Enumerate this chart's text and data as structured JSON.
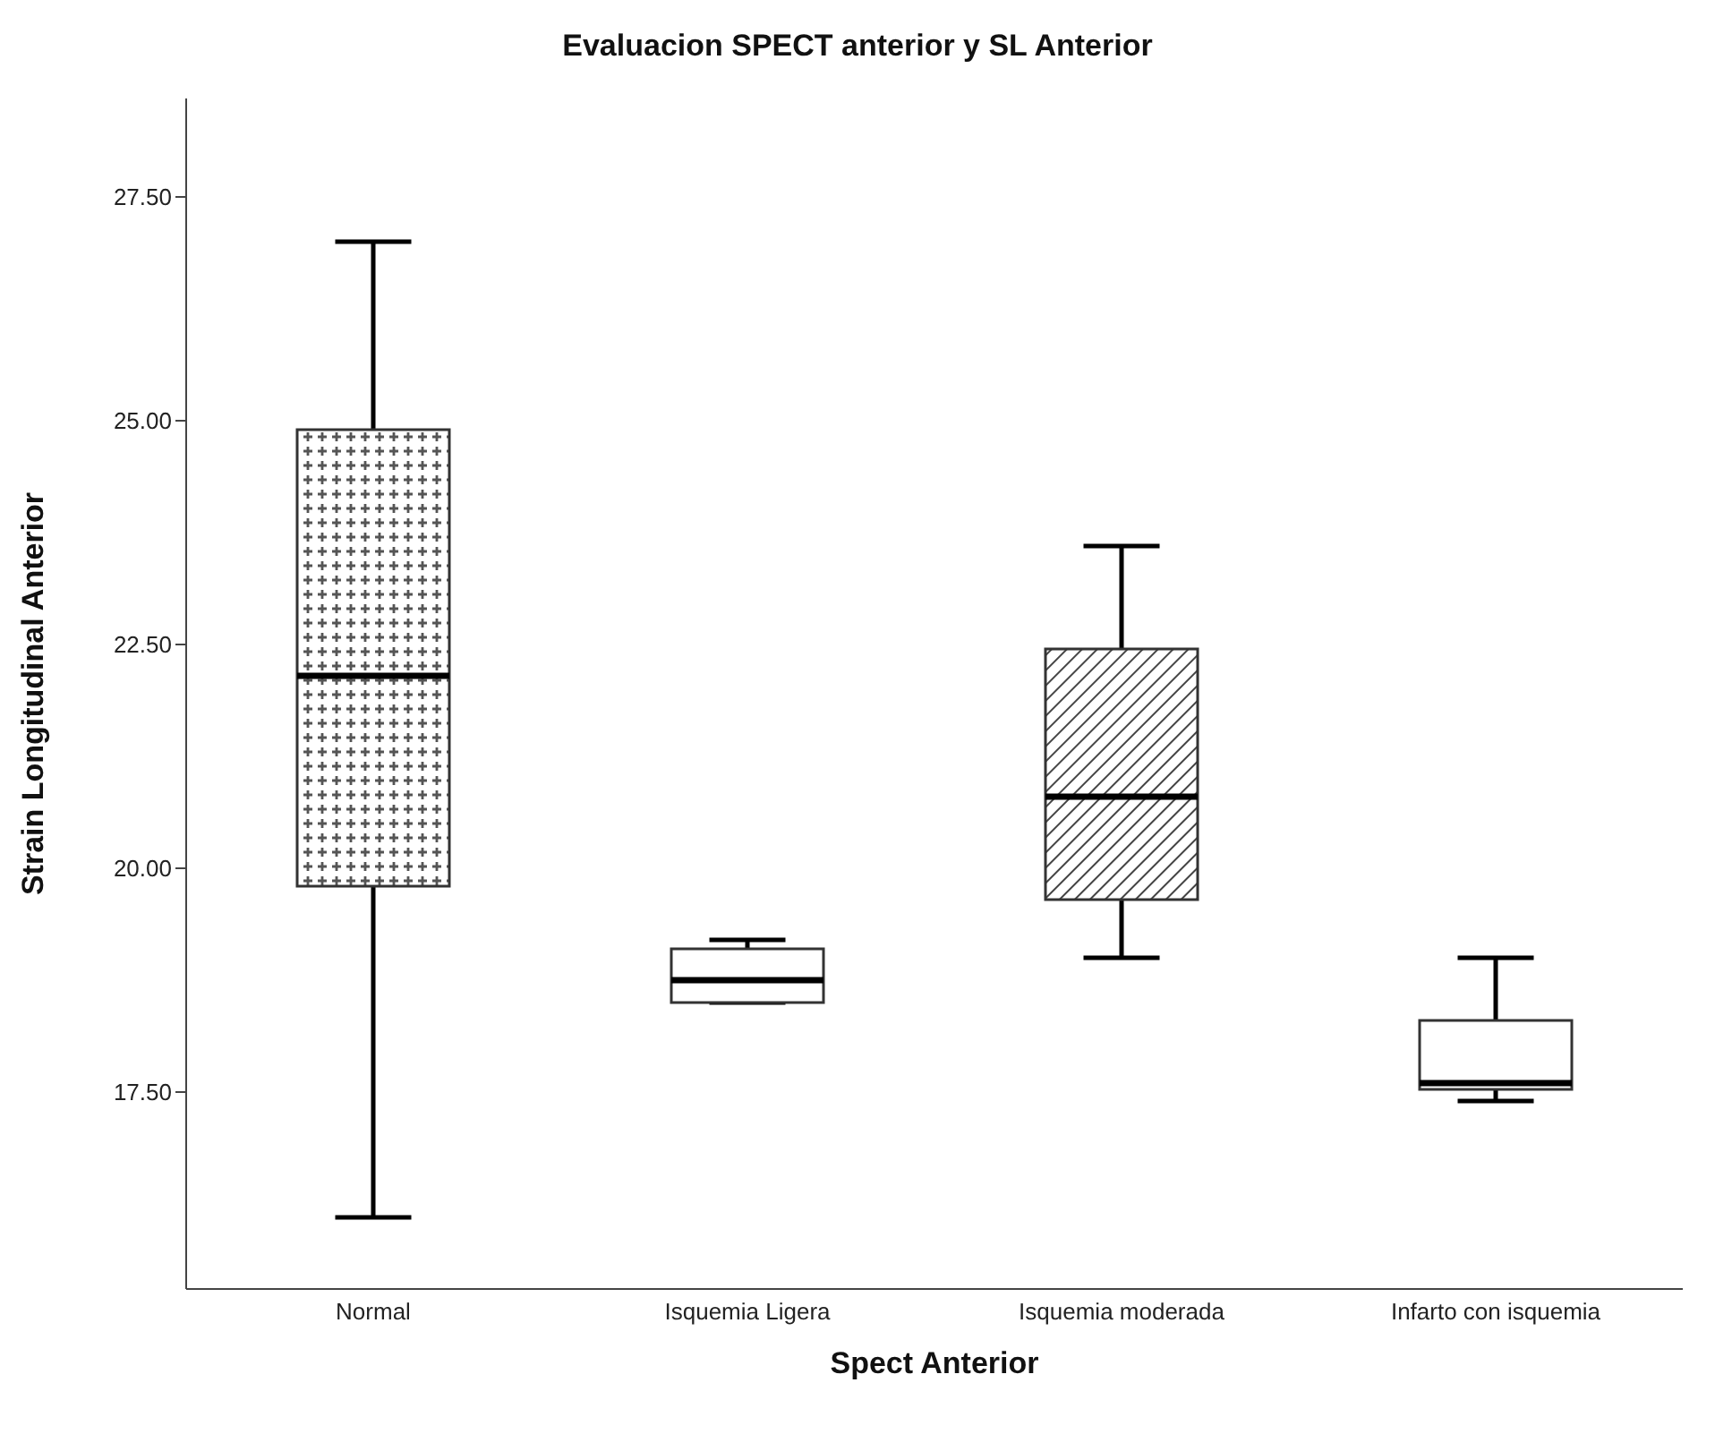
{
  "chart_data": {
    "type": "box",
    "title": "Evaluacion SPECT anterior y SL Anterior",
    "xlabel": "Spect Anterior",
    "ylabel": "Strain Longitudinal Anterior",
    "categories": [
      "Normal",
      "Isquemia Ligera",
      "Isquemia moderada",
      "Infarto con isquemia"
    ],
    "boxes": [
      {
        "low": 16.1,
        "q1": 19.8,
        "median": 22.15,
        "q3": 24.9,
        "high": 27.0
      },
      {
        "low": 18.5,
        "q1": 18.5,
        "median": 18.75,
        "q3": 19.1,
        "high": 19.2
      },
      {
        "low": 19.0,
        "q1": 19.65,
        "median": 20.8,
        "q3": 22.45,
        "high": 23.6
      },
      {
        "low": 17.4,
        "q1": 17.53,
        "median": 17.6,
        "q3": 18.3,
        "high": 19.0
      }
    ],
    "ylim": [
      15.3,
      28.6
    ],
    "yticks": [
      {
        "value": 17.5,
        "label": "17.50"
      },
      {
        "value": 20,
        "label": "20.00"
      },
      {
        "value": 22.5,
        "label": "22.50"
      },
      {
        "value": 25,
        "label": "25.00"
      },
      {
        "value": 27.5,
        "label": "27.50"
      }
    ],
    "grid": false,
    "legend": false
  }
}
